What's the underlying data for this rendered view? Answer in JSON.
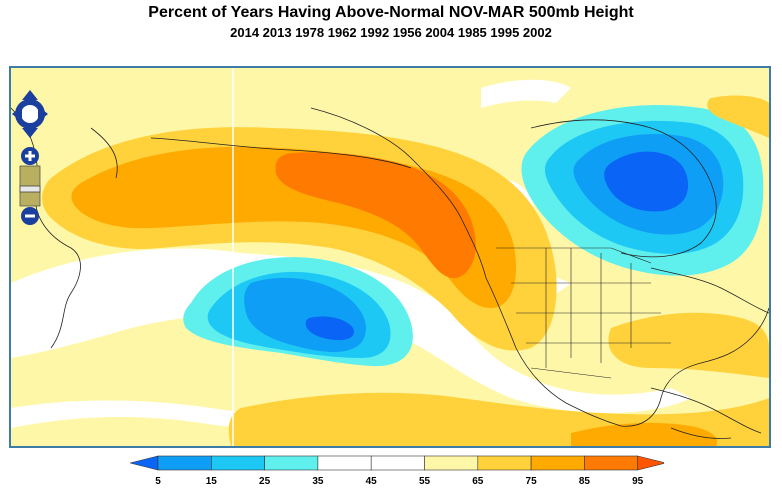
{
  "title": "Percent of Years Having Above-Normal NOV-MAR 500mb Height",
  "subtitle": "2014 2013 1978 1962 1992 1956 2004 1985 1995 2002",
  "controls": {
    "pan": "pan-arrows",
    "zoom_in": "+",
    "zoom_out": "−"
  },
  "legend": {
    "ticks": [
      "5",
      "15",
      "25",
      "35",
      "45",
      "55",
      "65",
      "75",
      "85",
      "95"
    ],
    "colors": [
      "#0a64f5",
      "#0f9ef5",
      "#1ec8f5",
      "#5ff0ee",
      "#ffffff",
      "#ffffff",
      "#fff7a8",
      "#ffd23c",
      "#ffaa00",
      "#ff7a00",
      "#ff5500"
    ]
  },
  "palette": {
    "frame": "#3d7ca6",
    "nav_blue": "#1a3f9e",
    "zoom_bar": "#b8b060"
  }
}
